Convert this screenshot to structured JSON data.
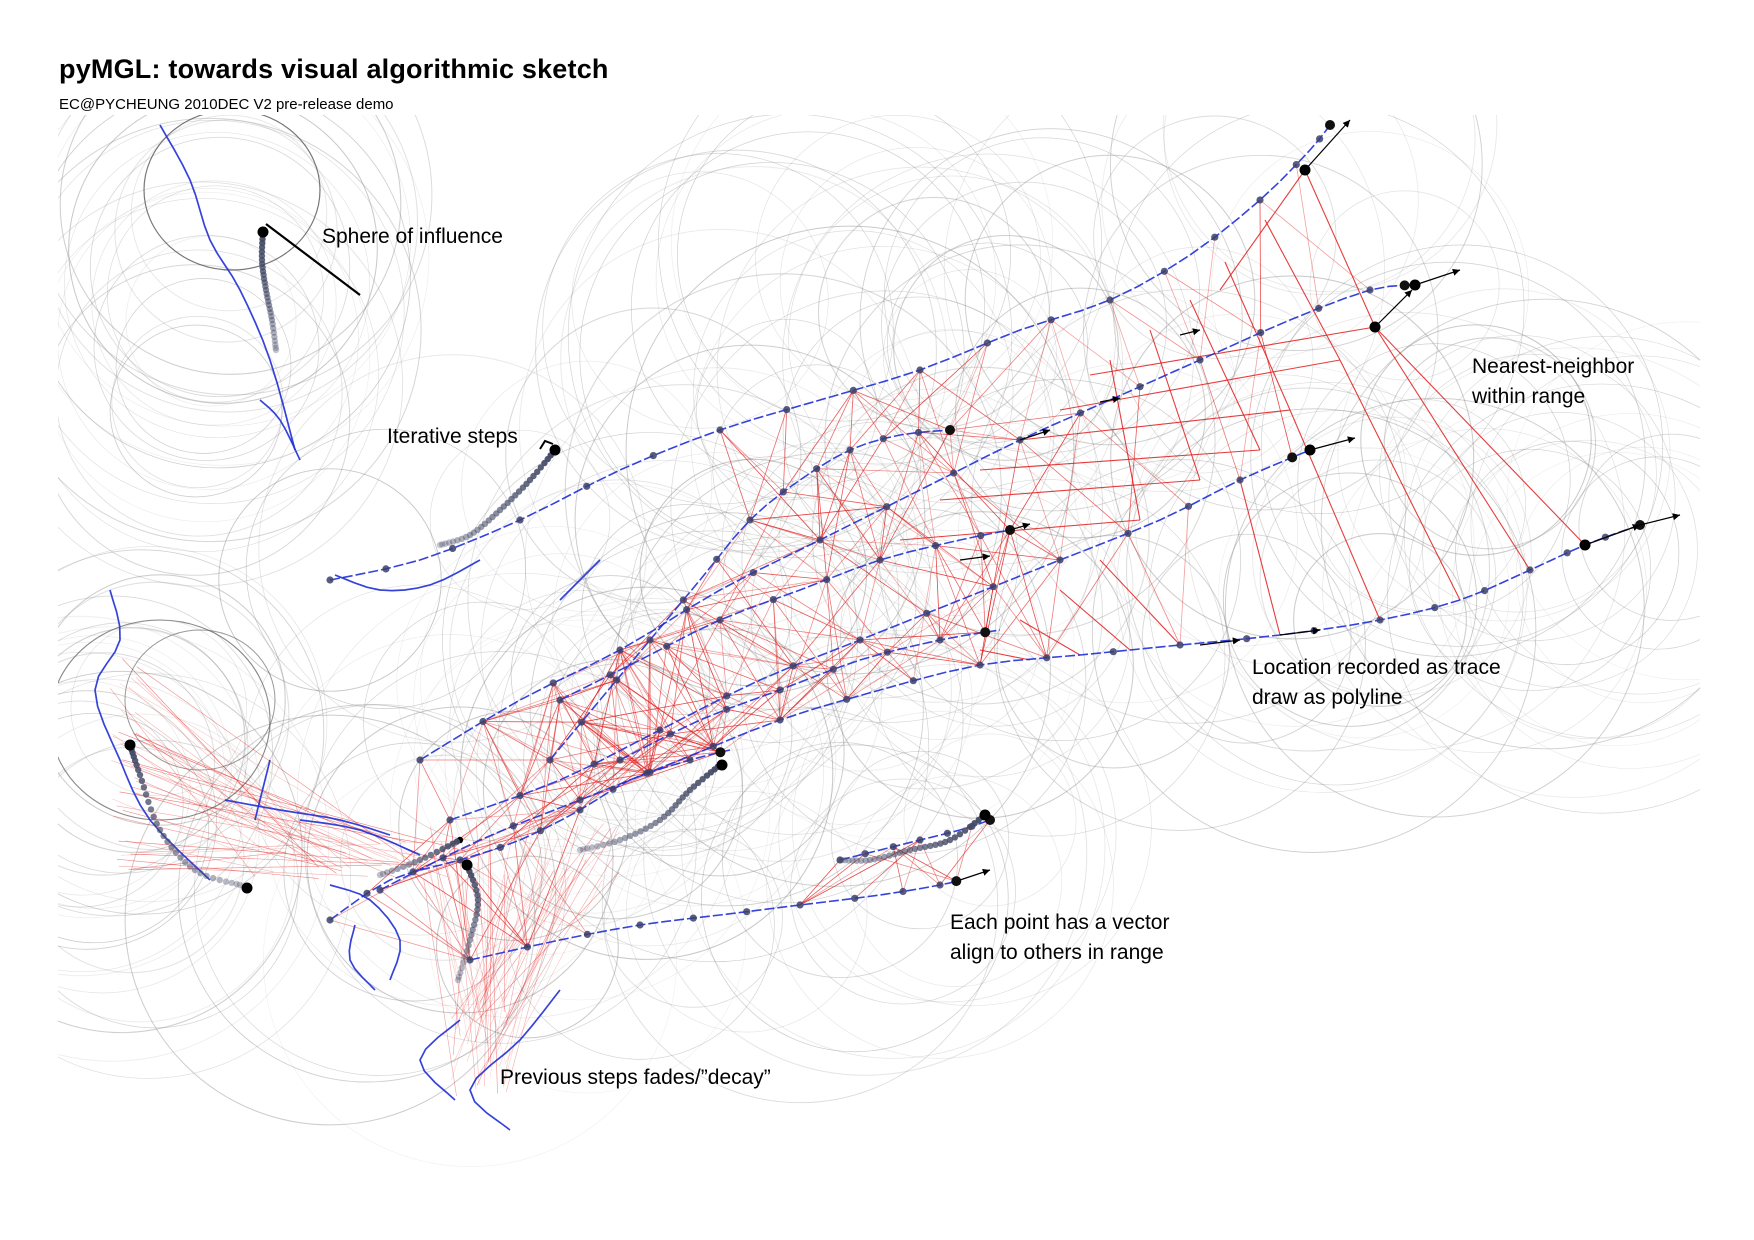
{
  "header": {
    "title": "pyMGL: towards visual algorithmic sketch",
    "subtitle": "EC@PYCHEUNG 2010DEC V2 pre-release demo"
  },
  "annotations": {
    "sphere": "Sphere of influence",
    "iterative": "Iterative steps",
    "nearest_line1": "Nearest-neighbor",
    "nearest_line2": "within range",
    "location_line1": "Location recorded as trace",
    "location_line2": "draw as polyline",
    "vector_line1": "Each point has a vector",
    "vector_line2": "align to others in range",
    "previous": "Previous steps fades/”decay”"
  },
  "colors": {
    "background": "#ffffff",
    "circles": "#8a8a8a",
    "traces": "#1f2fd6",
    "links": "#e01b1b",
    "points": "#111111",
    "vectors": "#000000"
  }
}
